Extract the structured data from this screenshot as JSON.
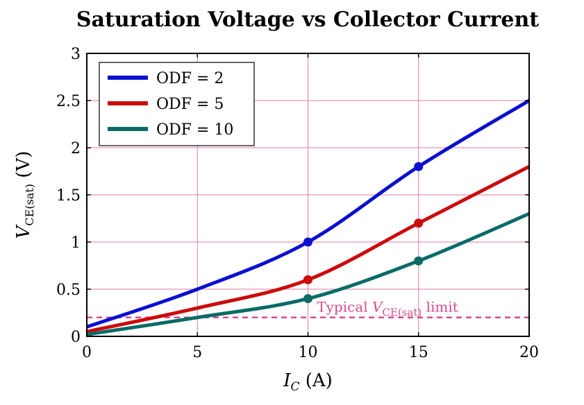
{
  "chart_data": {
    "type": "line",
    "title": "Saturation Voltage vs Collector Current",
    "xlabel": {
      "main": "I",
      "sub": "C",
      "unit": " (A)"
    },
    "ylabel": {
      "main": "V",
      "sub": "CE(sat)",
      "unit": " (V)"
    },
    "xlim": [
      0,
      20
    ],
    "ylim": [
      0,
      3
    ],
    "xticks": [
      0,
      5,
      10,
      15,
      20
    ],
    "xtick_labels": [
      "0",
      "5",
      "10",
      "15",
      "20"
    ],
    "yticks": [
      0,
      0.5,
      1,
      1.5,
      2,
      2.5,
      3
    ],
    "ytick_labels": [
      "0",
      "0.5",
      "1",
      "1.5",
      "2",
      "2.5",
      "3"
    ],
    "grid": true,
    "grid_color": "#e07aa8",
    "legend_position": "top-left",
    "series": [
      {
        "name": "ODF = 2",
        "color": "#0a0fd0",
        "x": [
          0,
          5,
          10,
          15,
          20
        ],
        "values": [
          0.1,
          0.5,
          1.0,
          1.8,
          2.5
        ],
        "markers_at": [
          10,
          15
        ]
      },
      {
        "name": "ODF = 5",
        "color": "#cc0a0a",
        "x": [
          0,
          5,
          10,
          15,
          20
        ],
        "values": [
          0.05,
          0.3,
          0.6,
          1.2,
          1.8
        ],
        "markers_at": [
          10,
          15
        ]
      },
      {
        "name": "ODF = 10",
        "color": "#0a6b66",
        "x": [
          0,
          5,
          10,
          15,
          20
        ],
        "values": [
          0.02,
          0.2,
          0.4,
          0.8,
          1.3
        ],
        "markers_at": [
          10,
          15
        ]
      }
    ],
    "reference_line": {
      "y": 0.2,
      "color": "#d64b8a",
      "label_prefix": "Typical ",
      "label_main": "V",
      "label_sub": "CE(sat)",
      "label_suffix": " limit",
      "label_x": 10.4,
      "label_y": 0.26
    }
  }
}
